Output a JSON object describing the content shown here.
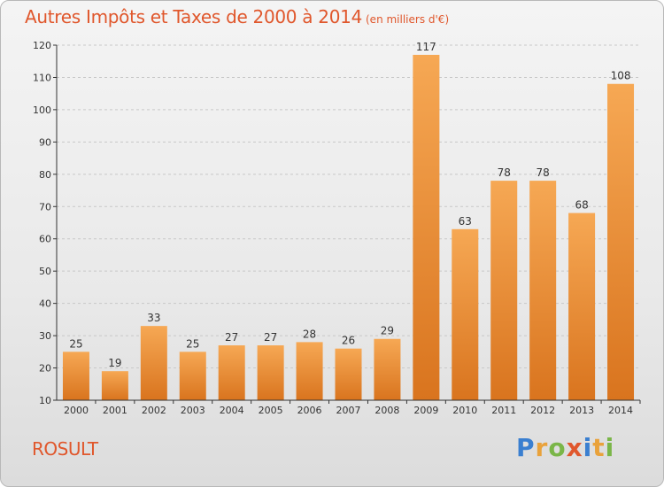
{
  "header": {
    "title": "Autres Impôts et Taxes de 2000 à 2014",
    "subtitle": "(en milliers d'€)"
  },
  "footer": {
    "commune": "ROSULT",
    "brand": "Proxiti",
    "brand_letters": [
      {
        "ch": "P",
        "color": "#3a7fd0"
      },
      {
        "ch": "r",
        "color": "#e9a23b"
      },
      {
        "ch": "o",
        "color": "#7ab648"
      },
      {
        "ch": "x",
        "color": "#e0572c"
      },
      {
        "ch": "i",
        "color": "#3a7fd0"
      },
      {
        "ch": "t",
        "color": "#e9a23b"
      },
      {
        "ch": "i",
        "color": "#7ab648"
      }
    ]
  },
  "colors": {
    "title": "#e0572c",
    "bar_light": "#f6a854",
    "bar_dark": "#d9741e",
    "grid": "#c8c8c8",
    "axis": "#333333"
  },
  "chart_data": {
    "type": "bar",
    "title": "Autres Impôts et Taxes de 2000 à 2014",
    "subtitle": "(en milliers d'€)",
    "xlabel": "",
    "ylabel": "",
    "categories": [
      "2000",
      "2001",
      "2002",
      "2003",
      "2004",
      "2005",
      "2006",
      "2007",
      "2008",
      "2009",
      "2010",
      "2011",
      "2012",
      "2013",
      "2014"
    ],
    "values": [
      25,
      19,
      33,
      25,
      27,
      27,
      28,
      26,
      29,
      117,
      63,
      78,
      78,
      68,
      108
    ],
    "ylim": [
      10,
      120
    ],
    "yticks": [
      10,
      20,
      30,
      40,
      50,
      60,
      70,
      80,
      90,
      100,
      110,
      120
    ],
    "grid": "horizontal dashed",
    "data_labels": true
  }
}
